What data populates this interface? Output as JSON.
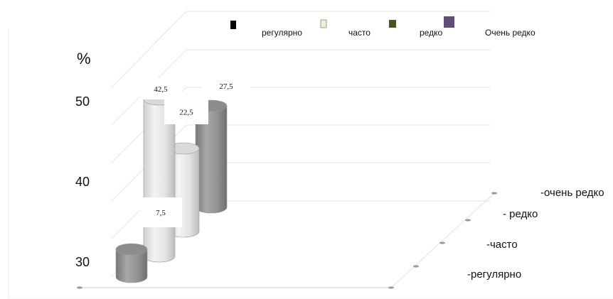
{
  "chart_data": {
    "type": "bar",
    "title": "",
    "ylabel": "%",
    "y_ticks": [
      "50",
      "40",
      "30"
    ],
    "categories": [
      "регулярно",
      "часто",
      "редко",
      "Очень редко"
    ],
    "values": [
      7.5,
      42.5,
      22.5,
      27.5
    ],
    "data_labels": [
      "7,5",
      "42,5",
      "22,5",
      "27,5"
    ],
    "legend": {
      "placement": "top",
      "entries": [
        "регулярно",
        "часто",
        "редко",
        "Очень редко"
      ]
    },
    "depth_axis_labels": [
      "-регулярно",
      "-часто",
      "- редко",
      "-очень редко"
    ],
    "colors": {
      "регулярно": "#000000",
      "часто": "#eeeedd",
      "редко": "#4a5227",
      "Очень редко": "#5c4f7a",
      "bar_light": "#d9d9d9",
      "bar_dark": "#8c8c8c",
      "grid": "#e6e6e6"
    },
    "grid": true
  }
}
